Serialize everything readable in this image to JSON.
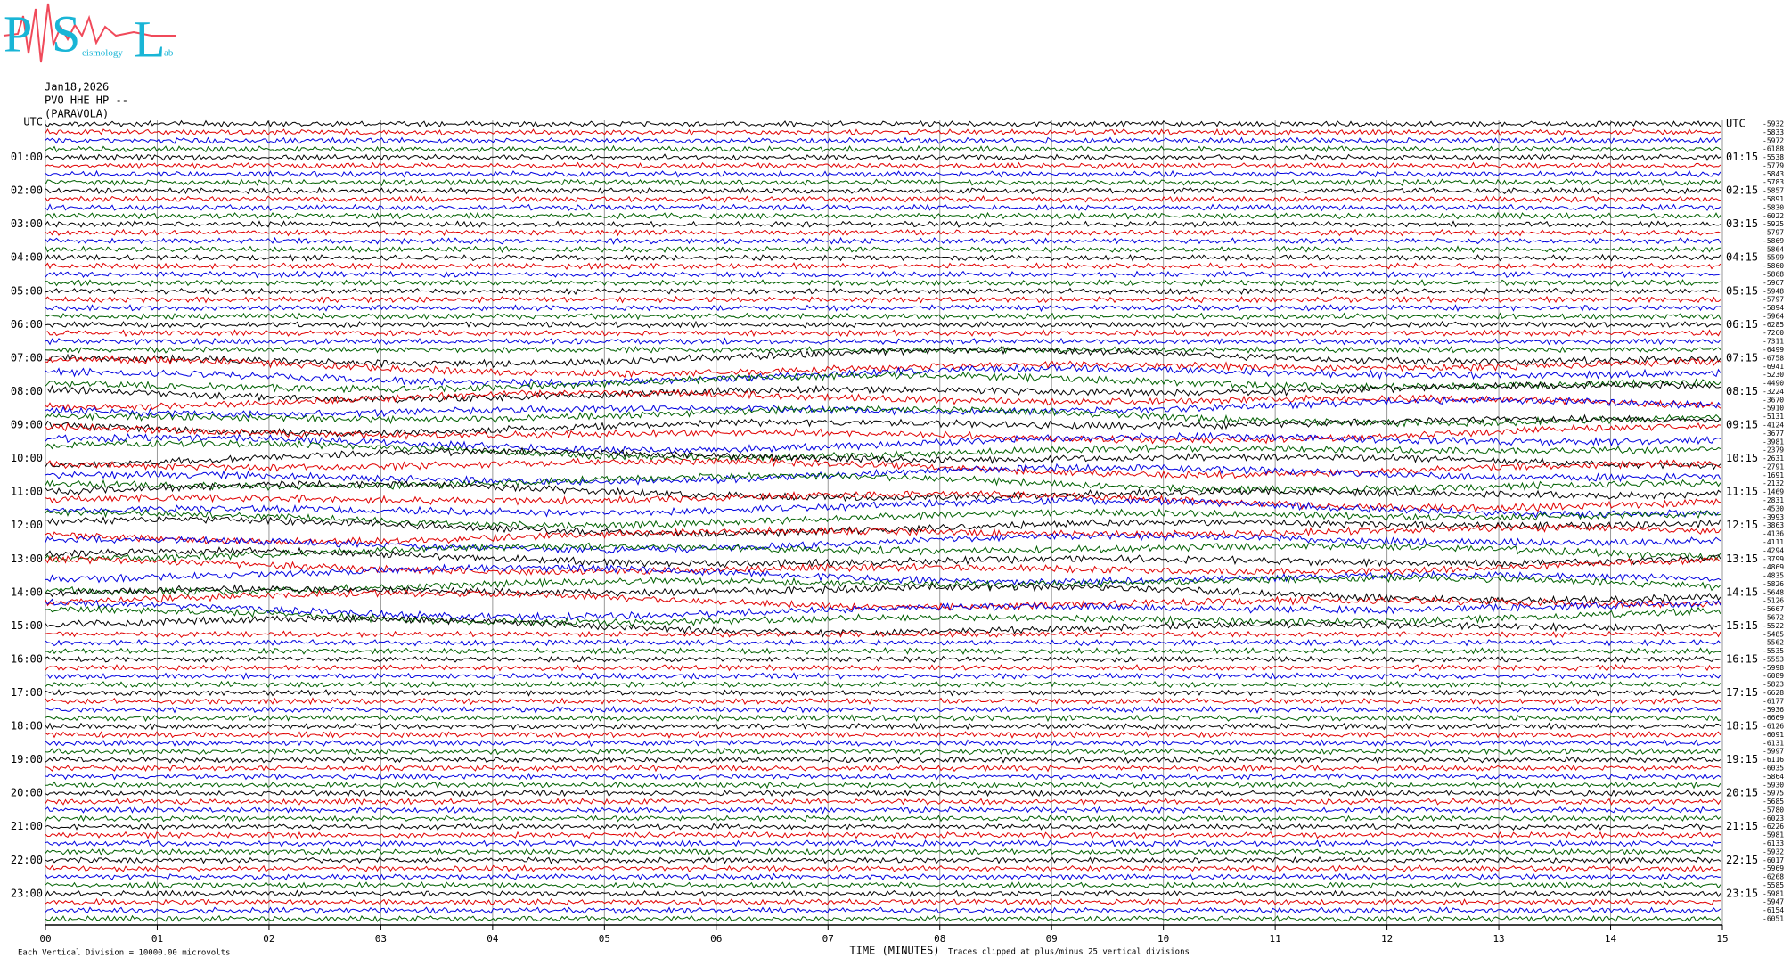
{
  "logo": {
    "letters": [
      "P",
      "S",
      "L"
    ],
    "word_middle": "eismology",
    "word_end": "ab"
  },
  "header": {
    "date": "Jan18,2026",
    "station": "PVO HHE HP --",
    "site": "(PARAVOLA)"
  },
  "helicorder": {
    "xlim": [
      0,
      15
    ],
    "xticks": [
      {
        "value": 0,
        "label": "00"
      },
      {
        "value": 1,
        "label": "01"
      },
      {
        "value": 2,
        "label": "02"
      },
      {
        "value": 3,
        "label": "03"
      },
      {
        "value": 4,
        "label": "04"
      },
      {
        "value": 5,
        "label": "05"
      },
      {
        "value": 6,
        "label": "06"
      },
      {
        "value": 7,
        "label": "07"
      },
      {
        "value": 8,
        "label": "08"
      },
      {
        "value": 9,
        "label": "09"
      },
      {
        "value": 10,
        "label": "10"
      },
      {
        "value": 11,
        "label": "11"
      },
      {
        "value": 12,
        "label": "12"
      },
      {
        "value": 13,
        "label": "13"
      },
      {
        "value": 14,
        "label": "14"
      },
      {
        "value": 15,
        "label": "15"
      }
    ],
    "x_label": "TIME (MINUTES)",
    "footer_left": "Each Vertical Division = 10000.00 microvolts",
    "footer_right": "Traces clipped at plus/minus 25 vertical divisions",
    "trace_colors": [
      "#000000",
      "#e00000",
      "#0000e0",
      "#006000"
    ],
    "left_labels": [
      "UTC",
      "01:00",
      "02:00",
      "03:00",
      "04:00",
      "05:00",
      "06:00",
      "07:00",
      "08:00",
      "09:00",
      "10:00",
      "11:00",
      "12:00",
      "13:00",
      "14:00",
      "15:00",
      "16:00",
      "17:00",
      "18:00",
      "19:00",
      "20:00",
      "21:00",
      "22:00",
      "23:00"
    ],
    "right_labels": [
      "UTC",
      "01:15",
      "02:15",
      "03:15",
      "04:15",
      "05:15",
      "06:15",
      "07:15",
      "08:15",
      "09:15",
      "10:15",
      "11:15",
      "12:15",
      "13:15",
      "14:15",
      "15:15",
      "16:15",
      "17:15",
      "18:15",
      "19:15",
      "20:15",
      "21:15",
      "22:15",
      "23:15"
    ],
    "trace_offsets": [
      -5932,
      -5833,
      -5972,
      -6188,
      -5538,
      -5779,
      -5843,
      -5783,
      -5857,
      -5891,
      -5830,
      -6022,
      -5925,
      -5797,
      -5869,
      -5864,
      -5599,
      -5860,
      -5868,
      -5967,
      -5948,
      -5797,
      -5894,
      -5964,
      -6285,
      -7260,
      -7311,
      -6499,
      -6758,
      -6941,
      -5230,
      -4490,
      -3224,
      -3670,
      -5910,
      -5131,
      -4124,
      -3677,
      -3981,
      -2379,
      -2631,
      -2791,
      -1691,
      -2132,
      -1469,
      -2831,
      -4530,
      -3993,
      -3863,
      -4136,
      -4111,
      -4294,
      -3799,
      -4869,
      -4835,
      -5826,
      -5648,
      -5126,
      -5667,
      -5672,
      -5522,
      -5485,
      -5562,
      -5535,
      -5553,
      -5998,
      -6089,
      -5823,
      -6628,
      -6177,
      -5936,
      -6669,
      -6126,
      -6091,
      -6131,
      -5997,
      -6116,
      -6035,
      -5864,
      -5930,
      -5975,
      -5685,
      -5780,
      -6023,
      -6226,
      -5981,
      -6133,
      -5932,
      -6017,
      -5969,
      -6268,
      -5585,
      -5981,
      -5947,
      -6154,
      -6051
    ]
  }
}
